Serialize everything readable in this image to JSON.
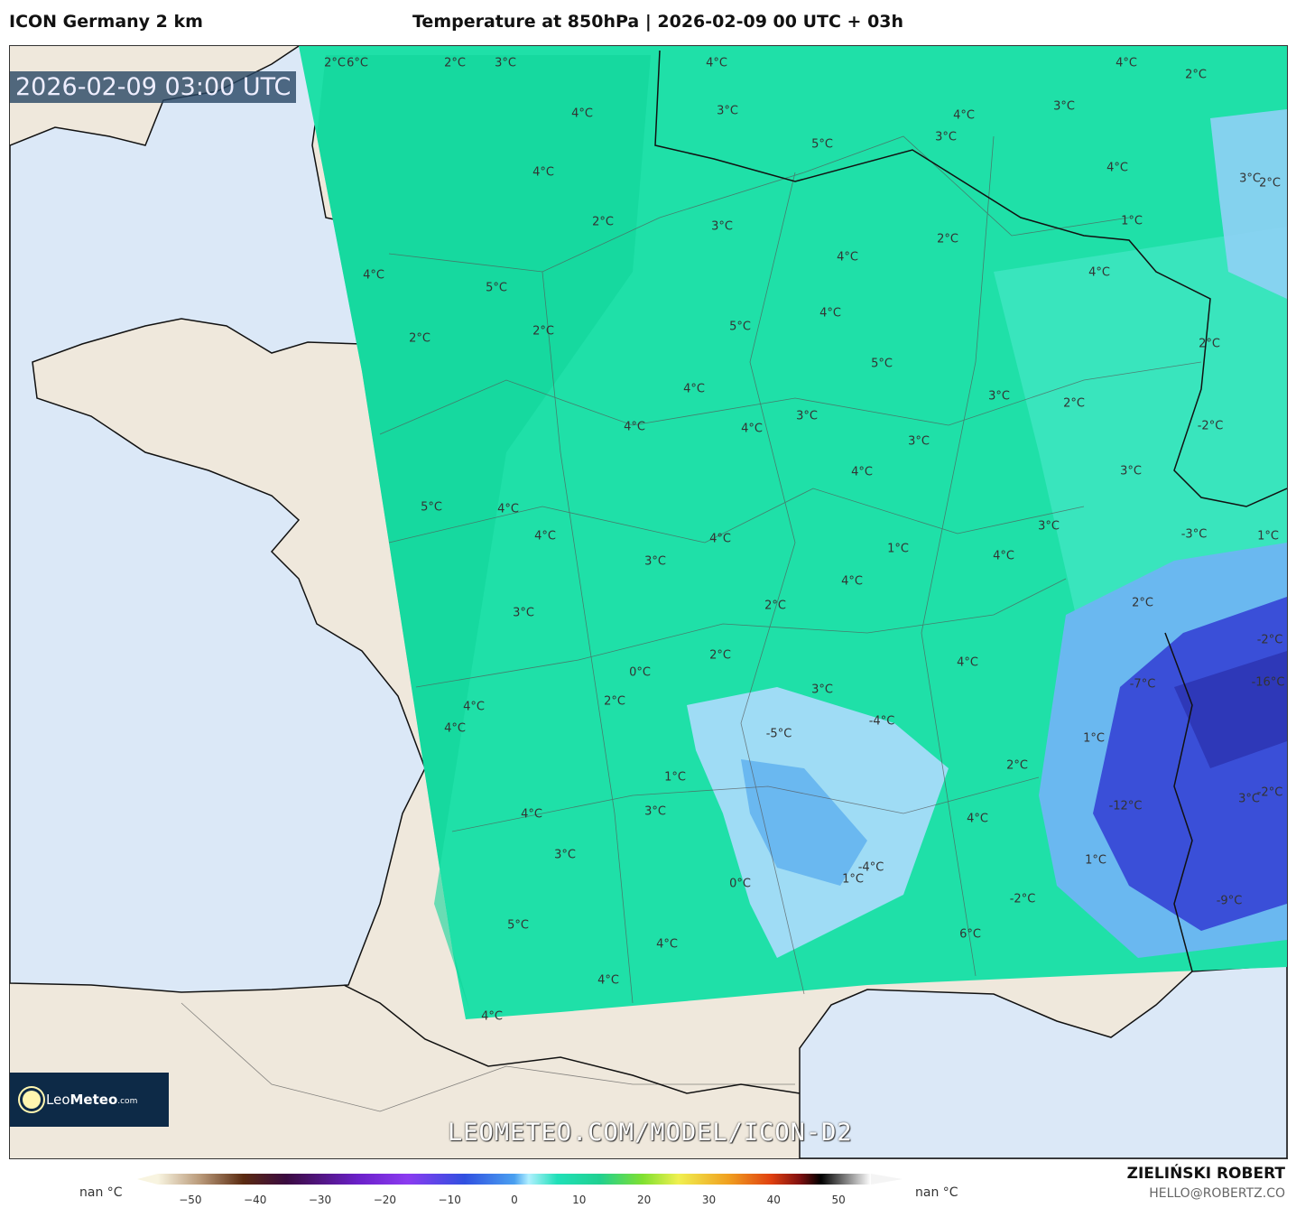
{
  "header": {
    "model": "ICON Germany 2 km",
    "title": "Temperature at 850hPa | 2026-02-09 00 UTC + 03h"
  },
  "map": {
    "valid_time": "2026-02-09 03:00 UTC",
    "watermark": "LEOMETEO.COM/MODEL/ICON-D2",
    "logo": {
      "brand_light": "Leo",
      "brand_bold": "Meteo",
      "suffix": ".com"
    },
    "colors": {
      "ocean": "#dbe8f7",
      "land": "#efe8dc",
      "warm_fill": "#1fe0a8",
      "cold_fill": "#8fd0f5",
      "very_cold_fill": "#3a4fd8"
    },
    "temperature_labels": [
      "2°C",
      "6°C",
      "2°C",
      "3°C",
      "4°C",
      "4°C",
      "2°C",
      "4°C",
      "3°C",
      "4°C",
      "3°C",
      "3°C",
      "5°C",
      "4°C",
      "4°C",
      "3°C",
      "2°C",
      "2°C",
      "3°C",
      "1°C",
      "2°C",
      "4°C",
      "4°C",
      "4°C",
      "5°C",
      "4°C",
      "5°C",
      "2°C",
      "2°C",
      "2°C",
      "5°C",
      "4°C",
      "3°C",
      "2°C",
      "3°C",
      "-2°C",
      "4°C",
      "4°C",
      "3°C",
      "4°C",
      "3°C",
      "5°C",
      "4°C",
      "3°C",
      "-3°C",
      "1°C",
      "4°C",
      "4°C",
      "1°C",
      "4°C",
      "3°C",
      "4°C",
      "2°C",
      "2°C",
      "3°C",
      "-2°C",
      "2°C",
      "4°C",
      "0°C",
      "-7°C",
      "-16°C",
      "3°C",
      "2°C",
      "4°C",
      "-4°C",
      "4°C",
      "-5°C",
      "1°C",
      "2°C",
      "1°C",
      "3°C",
      "-2°C",
      "-12°C",
      "3°C",
      "4°C",
      "4°C",
      "3°C",
      "1°C",
      "-4°C",
      "1°C",
      "0°C",
      "-2°C",
      "-9°C",
      "5°C",
      "6°C",
      "4°C",
      "4°C",
      "4°C"
    ]
  },
  "colorbar": {
    "ticks": [
      "−50",
      "−40",
      "−30",
      "−20",
      "−10",
      "0",
      "10",
      "20",
      "30",
      "40",
      "50"
    ],
    "min_label": "nan °C",
    "max_label": "nan °C",
    "range": [
      -55,
      55
    ],
    "unit": "°C"
  },
  "credits": {
    "author": "ZIELIŃSKI ROBERT",
    "email": "HELLO@ROBERTZ.CO"
  }
}
